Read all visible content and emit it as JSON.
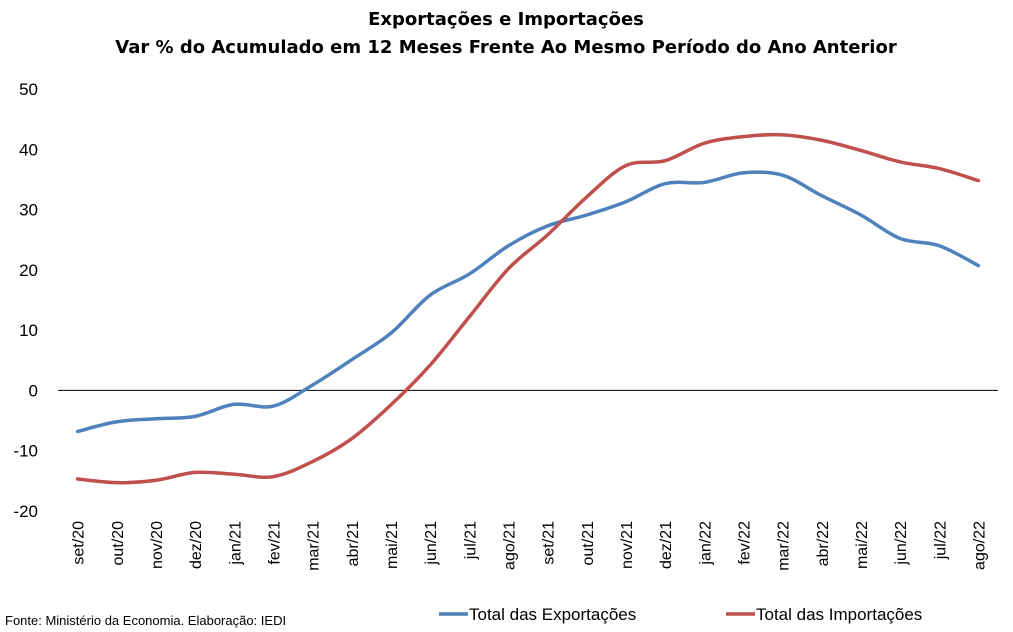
{
  "chart_data": {
    "type": "line",
    "title": "Exportações e Importações",
    "subtitle": "Var % do Acumulado em 12 Meses Frente Ao Mesmo Período do Ano Anterior",
    "xlabel": "",
    "ylabel": "",
    "ylim": [
      -20,
      50
    ],
    "yticks": [
      50,
      40,
      30,
      20,
      10,
      0,
      -10,
      -20
    ],
    "ytick_labels": [
      "50",
      "40",
      "30",
      "20",
      "10",
      "0",
      "-10",
      "-20"
    ],
    "categories": [
      "set/20",
      "out/20",
      "nov/20",
      "dez/20",
      "jan/21",
      "fev/21",
      "mar/21",
      "abr/21",
      "mai/21",
      "jun/21",
      "jul/21",
      "ago/21",
      "set/21",
      "out/21",
      "nov/21",
      "dez/21",
      "jan/22",
      "fev/22",
      "mar/22",
      "abr/22",
      "mai/22",
      "jun/22",
      "jul/22",
      "ago/22"
    ],
    "series": [
      {
        "name": "Total das Exportações",
        "color": "#4F81BD",
        "values": [
          -6.8,
          -5.2,
          -4.7,
          -4.3,
          -2.3,
          -2.6,
          0.9,
          5.1,
          9.5,
          15.8,
          19.3,
          24.0,
          27.3,
          29.1,
          31.3,
          34.3,
          34.5,
          36.1,
          35.7,
          32.3,
          29.1,
          25.2,
          24.0,
          20.7
        ]
      },
      {
        "name": "Total das Importações",
        "color": "#C0504D",
        "values": [
          -14.7,
          -15.3,
          -14.9,
          -13.6,
          -13.9,
          -14.3,
          -11.8,
          -8.0,
          -2.4,
          4.2,
          12.2,
          20.2,
          25.8,
          32.1,
          37.3,
          38.1,
          41.0,
          42.1,
          42.4,
          41.5,
          39.8,
          37.9,
          36.8,
          34.8
        ]
      }
    ],
    "grid": false,
    "zero_line": true,
    "legend_position": "bottom-right",
    "source": "Fonte: Ministério da Economia. Elaboração: IEDI"
  }
}
